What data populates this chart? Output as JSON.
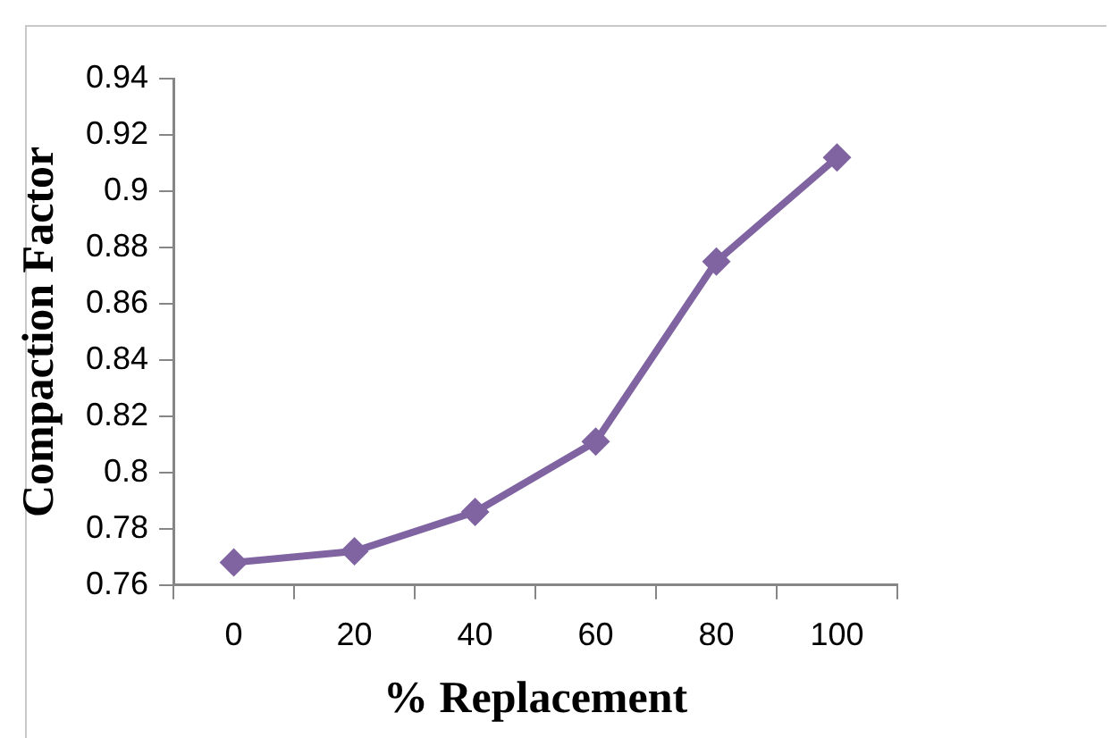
{
  "chart_data": {
    "type": "line",
    "xlabel": "% Replacement",
    "ylabel": "Compaction Factor",
    "categories": [
      "0",
      "20",
      "40",
      "60",
      "80",
      "100"
    ],
    "series": [
      {
        "color": "#8064a2",
        "values": [
          0.768,
          0.772,
          0.786,
          0.811,
          0.875,
          0.912
        ]
      }
    ],
    "ylim": [
      0.76,
      0.94
    ],
    "yticks": [
      0.76,
      0.78,
      0.8,
      0.82,
      0.84,
      0.86,
      0.88,
      0.9,
      0.92,
      0.94
    ],
    "grid": false,
    "legend": false,
    "marker": "diamond",
    "line_style": "solid"
  }
}
